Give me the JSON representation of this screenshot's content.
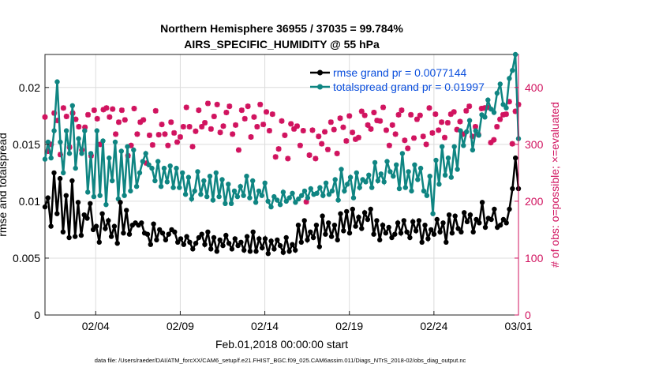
{
  "chart_data": {
    "type": "line",
    "title": "Northern Hemisphere 36955 / 37035 = 99.784%",
    "subtitle": "AIRS_SPECIFIC_HUMIDITY @ 55 hPa",
    "xlabel": "Feb.01,2018 00:00:00 start",
    "ylabel": "rmse and totalspread",
    "y2label": "# of obs: o=possible; ×=evaluated",
    "footer": "data file: /Users/raeder/DAI/ATM_forcXX/CAM6_setup/f.e21.FHIST_BGC.f09_025.CAM6assim.011/Diags_NTrS_2018-02/obs_diag_output.nc",
    "x_tick_labels": [
      "02/04",
      "02/09",
      "02/14",
      "02/19",
      "02/24",
      "03/01"
    ],
    "x_tick_days": [
      3,
      8,
      13,
      18,
      23,
      28
    ],
    "xlim": [
      0,
      28
    ],
    "y_tick_labels": [
      "0",
      "0.005",
      "0.01",
      "0.015",
      "0.02"
    ],
    "y_ticks": [
      0,
      0.005,
      0.01,
      0.015,
      0.02
    ],
    "ylim": [
      0,
      0.0229
    ],
    "y2_tick_labels": [
      "0",
      "100",
      "200",
      "300",
      "400"
    ],
    "y2_ticks": [
      0,
      100,
      200,
      300,
      400
    ],
    "y2lim": [
      0,
      458
    ],
    "grid": true,
    "legend_position": "top-right",
    "series": [
      {
        "name": "rmse grand pr = 0.0077144",
        "color": "#000000",
        "marker": "filled-circle",
        "values": [
          0.0095,
          0.0103,
          0.0078,
          0.0125,
          0.0089,
          0.012,
          0.0073,
          0.0105,
          0.0068,
          0.0118,
          0.0069,
          0.0099,
          0.007,
          0.0088,
          0.0085,
          0.0098,
          0.0075,
          0.0078,
          0.0064,
          0.0089,
          0.0076,
          0.0083,
          0.0069,
          0.0078,
          0.0063,
          0.0099,
          0.0072,
          0.0092,
          0.0071,
          0.0079,
          0.0081,
          0.0079,
          0.0081,
          0.0072,
          0.0071,
          0.0062,
          0.008,
          0.0066,
          0.0075,
          0.0072,
          0.0066,
          0.0071,
          0.0075,
          0.0073,
          0.0064,
          0.0067,
          0.0062,
          0.0069,
          0.0064,
          0.0058,
          0.0063,
          0.0068,
          0.0071,
          0.0062,
          0.0073,
          0.0058,
          0.0068,
          0.0056,
          0.0066,
          0.0061,
          0.007,
          0.0063,
          0.0058,
          0.0067,
          0.0061,
          0.0064,
          0.0057,
          0.0069,
          0.0056,
          0.0073,
          0.0056,
          0.0067,
          0.0059,
          0.0067,
          0.0054,
          0.0065,
          0.0058,
          0.0066,
          0.0061,
          0.0055,
          0.0068,
          0.0056,
          0.0062,
          0.0057,
          0.0079,
          0.0064,
          0.0083,
          0.0066,
          0.0073,
          0.0068,
          0.0079,
          0.006,
          0.0087,
          0.0071,
          0.0081,
          0.0069,
          0.0079,
          0.0066,
          0.0089,
          0.0074,
          0.0091,
          0.0072,
          0.0093,
          0.0078,
          0.0086,
          0.0076,
          0.009,
          0.0084,
          0.0093,
          0.0071,
          0.0083,
          0.0066,
          0.0079,
          0.0072,
          0.0077,
          0.0068,
          0.0071,
          0.0081,
          0.0072,
          0.0083,
          0.0073,
          0.0068,
          0.0082,
          0.0074,
          0.0083,
          0.0064,
          0.0079,
          0.0067,
          0.0075,
          0.0071,
          0.0084,
          0.0073,
          0.0081,
          0.0064,
          0.0088,
          0.0072,
          0.0087,
          0.0076,
          0.0073,
          0.009,
          0.0082,
          0.0088,
          0.0073,
          0.0084,
          0.0081,
          0.0099,
          0.0077,
          0.0085,
          0.0084,
          0.0093,
          0.0077,
          0.0079,
          0.0084,
          0.0081,
          0.0093,
          0.0111,
          0.0138,
          0.0111
        ]
      },
      {
        "name": "totalspread grand pr = 0.01997",
        "color": "#0f8582",
        "marker": "filled-circle",
        "values": [
          0.0137,
          0.0152,
          0.0138,
          0.0162,
          0.0205,
          0.0152,
          0.0125,
          0.0162,
          0.0142,
          0.0184,
          0.0129,
          0.0155,
          0.0142,
          0.0162,
          0.0108,
          0.0142,
          0.0104,
          0.0162,
          0.0105,
          0.0153,
          0.0097,
          0.0138,
          0.0118,
          0.0152,
          0.0102,
          0.0144,
          0.0105,
          0.0148,
          0.0109,
          0.0145,
          0.0113,
          0.0125,
          0.0135,
          0.0142,
          0.0132,
          0.0129,
          0.0118,
          0.0135,
          0.0113,
          0.0129,
          0.0117,
          0.0131,
          0.0112,
          0.0129,
          0.0112,
          0.0125,
          0.0106,
          0.0121,
          0.0102,
          0.0109,
          0.0126,
          0.0106,
          0.0118,
          0.0104,
          0.0122,
          0.0101,
          0.0125,
          0.0104,
          0.0119,
          0.0098,
          0.0115,
          0.0098,
          0.0109,
          0.0104,
          0.0113,
          0.0105,
          0.0122,
          0.0103,
          0.0118,
          0.0099,
          0.0109,
          0.0105,
          0.0116,
          0.01,
          0.0095,
          0.0104,
          0.0101,
          0.0097,
          0.0108,
          0.01,
          0.0103,
          0.0107,
          0.0099,
          0.0102,
          0.0105,
          0.0109,
          0.0103,
          0.0111,
          0.0106,
          0.0107,
          0.0112,
          0.0105,
          0.0116,
          0.0106,
          0.0109,
          0.0119,
          0.0101,
          0.0128,
          0.0109,
          0.0115,
          0.0121,
          0.0103,
          0.0125,
          0.0112,
          0.0119,
          0.0117,
          0.0123,
          0.0112,
          0.0134,
          0.0118,
          0.0124,
          0.0117,
          0.0135,
          0.0126,
          0.0122,
          0.0132,
          0.0111,
          0.0142,
          0.0112,
          0.0126,
          0.0109,
          0.0132,
          0.0119,
          0.0129,
          0.0109,
          0.0105,
          0.0122,
          0.0089,
          0.0136,
          0.0115,
          0.0148,
          0.0123,
          0.0138,
          0.0121,
          0.0148,
          0.0128,
          0.0162,
          0.0149,
          0.0161,
          0.0171,
          0.0145,
          0.0162,
          0.0158,
          0.0176,
          0.0174,
          0.0189,
          0.0181,
          0.0178,
          0.0195,
          0.0203,
          0.0185,
          0.0182,
          0.0208,
          0.0215,
          0.0229,
          0.0155
        ]
      },
      {
        "name": "# of obs (possible / evaluated)",
        "color": "#d1135f",
        "marker": "asterisk",
        "axis": "right",
        "values": [
          348,
          288,
          300,
          355,
          342,
          282,
          364,
          349,
          295,
          355,
          344,
          331,
          290,
          330,
          352,
          280,
          360,
          345,
          300,
          361,
          364,
          348,
          362,
          318,
          339,
          360,
          343,
          280,
          298,
          363,
          318,
          339,
          343,
          267,
          316,
          299,
          359,
          317,
          335,
          318,
          298,
          339,
          320,
          304,
          313,
          331,
          365,
          331,
          296,
          323,
          360,
          331,
          338,
          372,
          327,
          349,
          370,
          321,
          332,
          356,
          367,
          318,
          334,
          290,
          360,
          345,
          367,
          313,
          348,
          331,
          370,
          335,
          357,
          324,
          353,
          278,
          292,
          341,
          316,
          275,
          336,
          327,
          332,
          298,
          324,
          199,
          281,
          325,
          275,
          314,
          301,
          322,
          291,
          339,
          326,
          284,
          346,
          330,
          306,
          350,
          321,
          309,
          312,
          358,
          351,
          334,
          327,
          356,
          342,
          341,
          365,
          325,
          298,
          334,
          318,
          352,
          360,
          307,
          293,
          352,
          311,
          344,
          351,
          314,
          300,
          364,
          320,
          353,
          325,
          339,
          312,
          338,
          353,
          357,
          326,
          340,
          318,
          359,
          367,
          314,
          331,
          317,
          363,
          364,
          365,
          303,
          308,
          331,
          344,
          352,
          353,
          375,
          301,
          358,
          370
        ]
      }
    ]
  }
}
